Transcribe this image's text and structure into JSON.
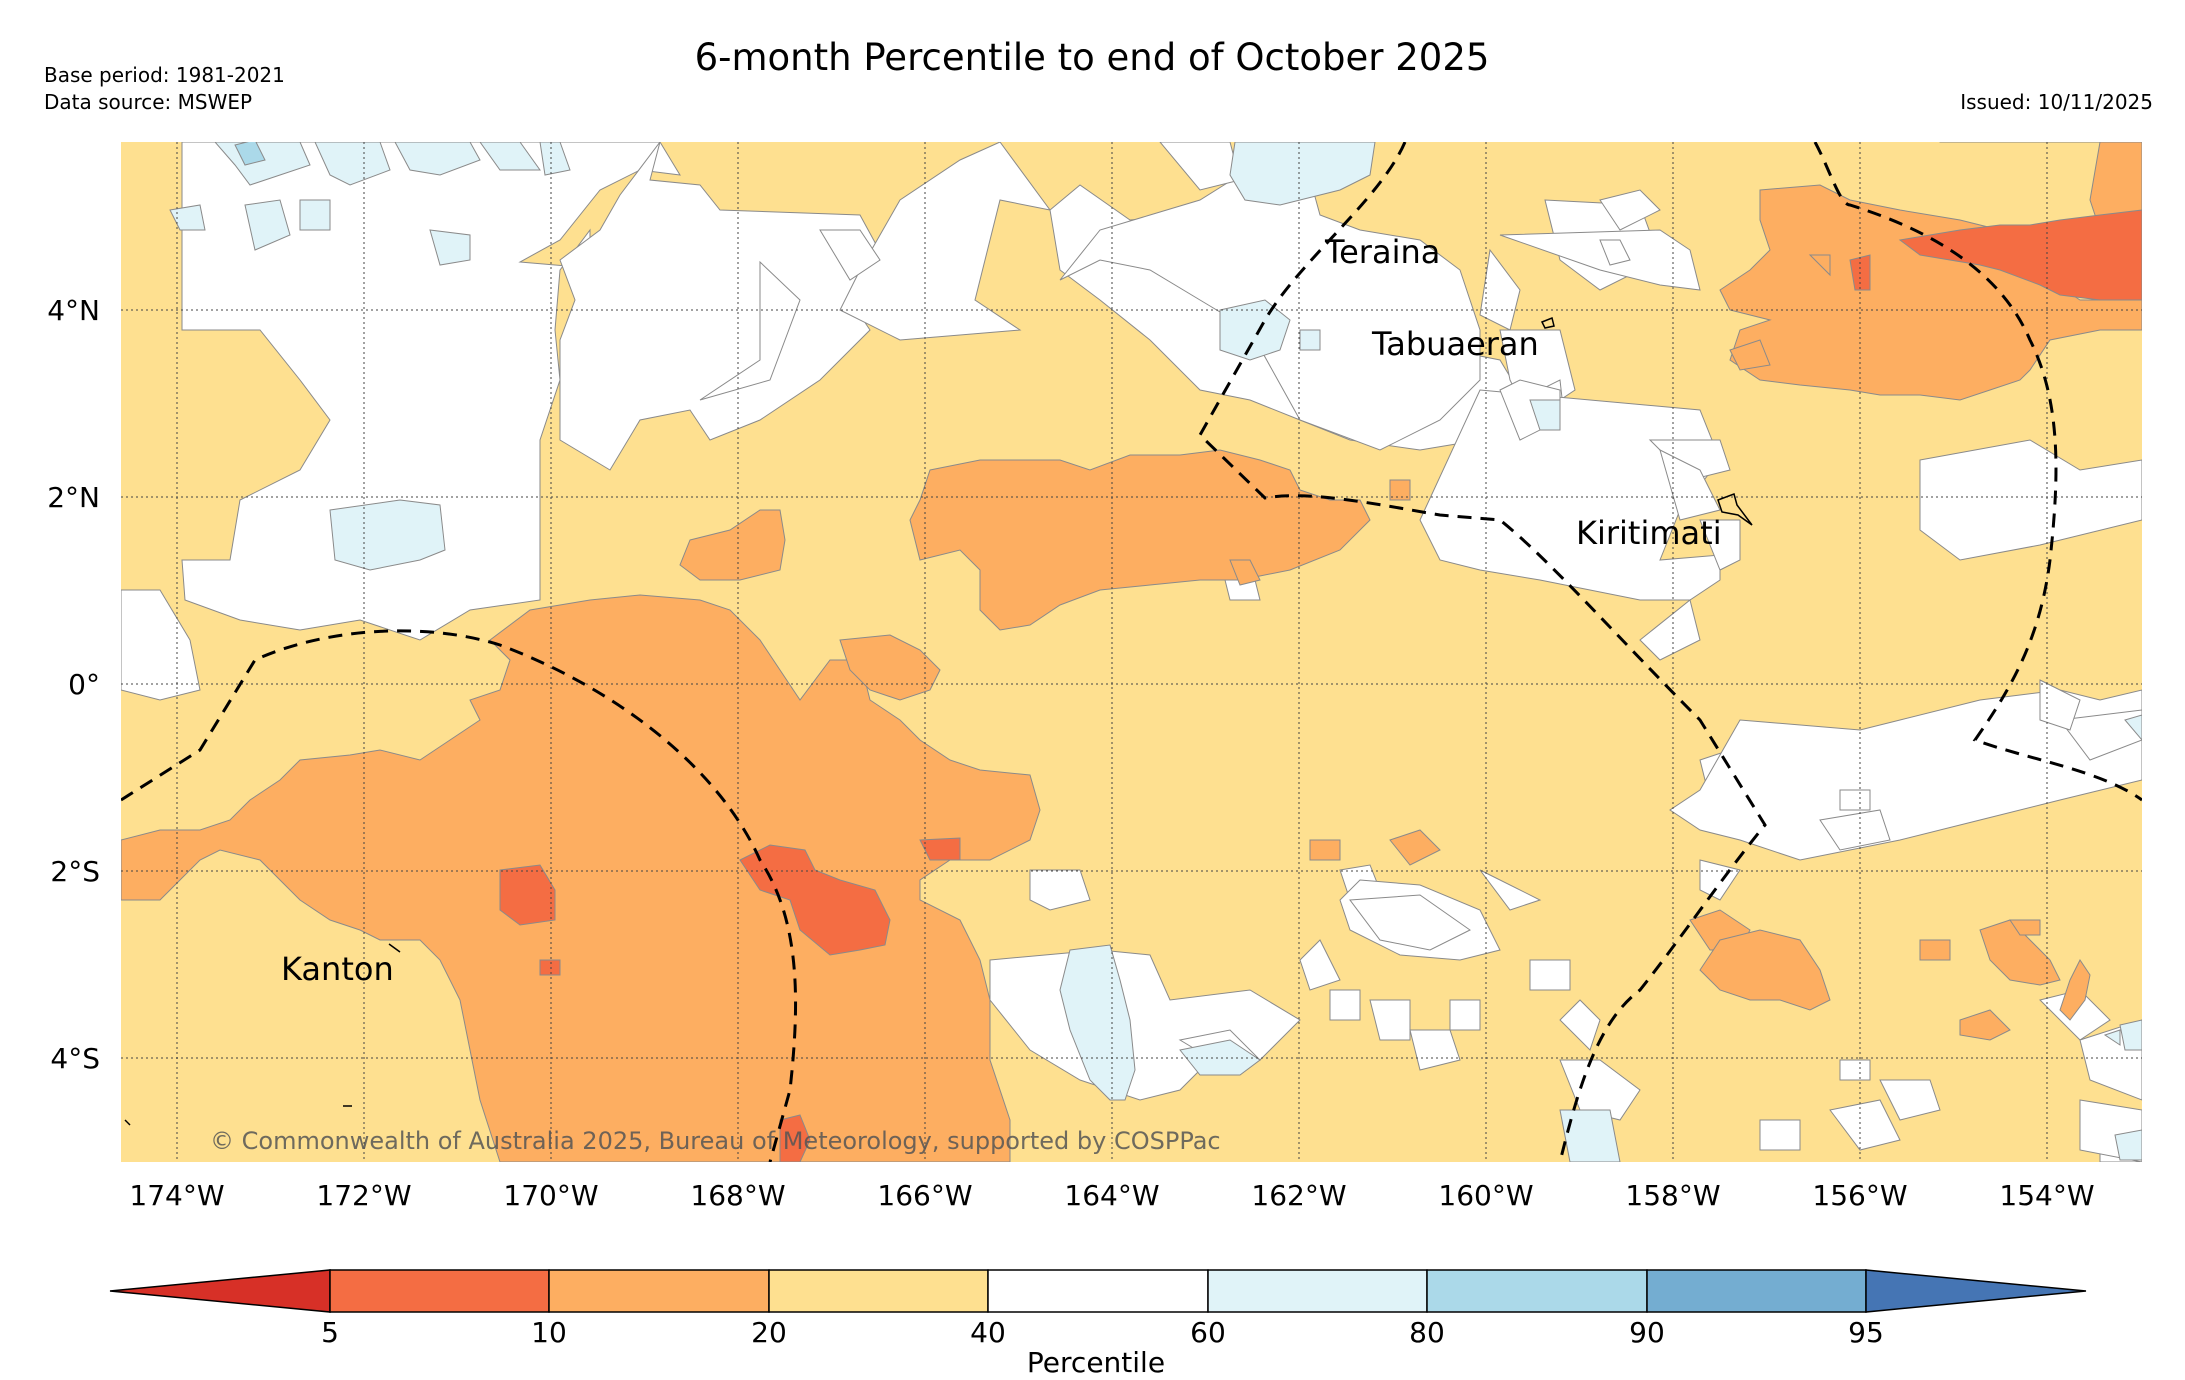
{
  "title": "6-month Percentile to end of October 2025",
  "meta": {
    "base_period": "Base period: 1981-2021",
    "data_source": "Data source: MSWEP",
    "issued": "Issued: 10/11/2025"
  },
  "copyright": "© Commonwealth of Australia 2025, Bureau of Meteorology, supported by COSPPac",
  "axes": {
    "lat_ticks": [
      {
        "value": 4,
        "label": "4°N"
      },
      {
        "value": 2,
        "label": "2°N"
      },
      {
        "value": 0,
        "label": "0°"
      },
      {
        "value": -2,
        "label": "2°S"
      },
      {
        "value": -4,
        "label": "4°S"
      }
    ],
    "lon_ticks": [
      {
        "value": -174,
        "label": "174°W"
      },
      {
        "value": -172,
        "label": "172°W"
      },
      {
        "value": -170,
        "label": "170°W"
      },
      {
        "value": -168,
        "label": "168°W"
      },
      {
        "value": -166,
        "label": "166°W"
      },
      {
        "value": -164,
        "label": "164°W"
      },
      {
        "value": -162,
        "label": "162°W"
      },
      {
        "value": -160,
        "label": "160°W"
      },
      {
        "value": -158,
        "label": "158°W"
      },
      {
        "value": -156,
        "label": "156°W"
      },
      {
        "value": -154,
        "label": "154°W"
      }
    ],
    "lon_range": [
      -174.65,
      -153.0
    ],
    "lat_range": [
      -5.15,
      5.8
    ]
  },
  "places": [
    {
      "name": "Teraina",
      "lon": -161.3,
      "lat": 4.65
    },
    {
      "name": "Tabuaeran",
      "lon": -159.35,
      "lat": 3.68
    },
    {
      "name": "Kiritimati",
      "lon": -157.4,
      "lat": 1.85
    },
    {
      "name": "Kanton",
      "lon": -171.7,
      "lat": -2.8
    }
  ],
  "legend": {
    "title": "Percentile",
    "tick_labels": [
      "5",
      "10",
      "20",
      "40",
      "60",
      "80",
      "90",
      "95"
    ],
    "colors": {
      "below_5": "#d73027",
      "5_10": "#f46d43",
      "10_20": "#fdae61",
      "20_40": "#fee090",
      "40_60": "#ffffff",
      "60_80": "#e0f3f8",
      "80_90": "#abd9e9",
      "90_95": "#74add1",
      "above_95": "#4575b4"
    }
  }
}
